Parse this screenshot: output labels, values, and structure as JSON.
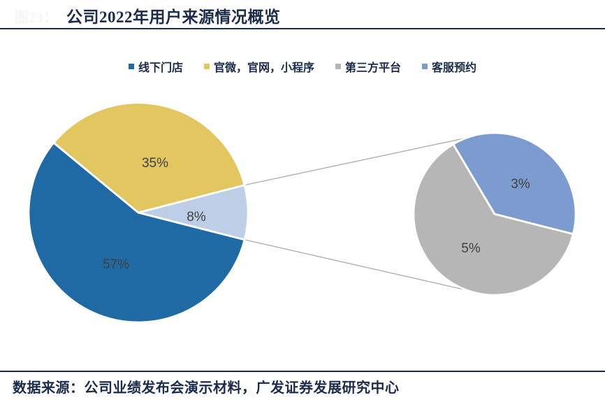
{
  "figure": {
    "watermark": "图23：",
    "title": "公司2022年用户来源情况概览",
    "source": "数据来源：公司业绩发布会演示材料，广发证券发展研究中心"
  },
  "legend": {
    "items": [
      {
        "label": "线下门店",
        "color": "#1F6AA5",
        "key": "offline-stores"
      },
      {
        "label": "官微，官网，小程序",
        "color": "#E2C760",
        "key": "official-channels"
      },
      {
        "label": "第三方平台",
        "color": "#B6B6B6",
        "key": "third-party-platform"
      },
      {
        "label": "客服预约",
        "color": "#7C9CCF",
        "key": "service-booking"
      }
    ]
  },
  "colors": {
    "accent_navy": "#1B2B4B",
    "data_label": "#404040",
    "connector_line": "#A6A6A6",
    "slice_border": "#FFFFFF"
  },
  "chart_data": {
    "type": "pie",
    "variant": "pie-of-pie",
    "title": "公司2022年用户来源情况概览",
    "unit": "percent",
    "legend_position": "top-center",
    "main_pie": {
      "slices": [
        {
          "name": "线下门店",
          "value": 57,
          "data_label": "57%",
          "color": "#1F6AA5",
          "key": "offline-stores"
        },
        {
          "name": "",
          "value": 8,
          "data_label": "8%",
          "color": "#BCCFE6",
          "key": "other-combined"
        },
        {
          "name": "官微，官网，小程序",
          "value": 35,
          "data_label": "35%",
          "color": "#E2C760",
          "key": "official-channels"
        }
      ]
    },
    "secondary_pie": {
      "share_of_main": 8,
      "slices": [
        {
          "name": "第三方平台",
          "value": 5,
          "data_label": "5%",
          "color": "#B6B6B6",
          "key": "third-party-platform"
        },
        {
          "name": "客服预约",
          "value": 3,
          "data_label": "3%",
          "color": "#7C9CCF",
          "key": "service-booking"
        }
      ]
    }
  }
}
